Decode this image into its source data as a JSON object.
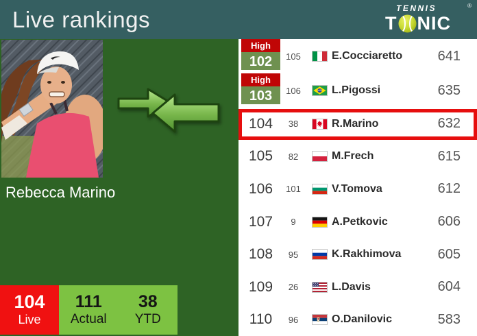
{
  "header": {
    "title": "Live rankings",
    "logo": {
      "top": "TENNIS",
      "bottom_left": "T",
      "bottom_right": "NIC",
      "registered": "®",
      "ball_color": "#c6d832"
    }
  },
  "player": {
    "name": "Rebecca Marino"
  },
  "stats": {
    "live": {
      "value": "104",
      "label": "Live"
    },
    "actual": {
      "value": "111",
      "label": "Actual"
    },
    "ytd": {
      "value": "38",
      "label": "YTD"
    }
  },
  "rankings": {
    "high_label": "High",
    "rows": [
      {
        "high": true,
        "highlighted": false,
        "rank": "102",
        "secondary": "105",
        "country": "italy",
        "player": "E.Cocciaretto",
        "points": "641"
      },
      {
        "high": true,
        "highlighted": false,
        "rank": "103",
        "secondary": "106",
        "country": "brazil",
        "player": "L.Pigossi",
        "points": "635"
      },
      {
        "high": false,
        "highlighted": true,
        "rank": "104",
        "secondary": "38",
        "country": "canada",
        "player": "R.Marino",
        "points": "632"
      },
      {
        "high": false,
        "highlighted": false,
        "rank": "105",
        "secondary": "82",
        "country": "poland",
        "player": "M.Frech",
        "points": "615"
      },
      {
        "high": false,
        "highlighted": false,
        "rank": "106",
        "secondary": "101",
        "country": "bulgaria",
        "player": "V.Tomova",
        "points": "612"
      },
      {
        "high": false,
        "highlighted": false,
        "rank": "107",
        "secondary": "9",
        "country": "germany",
        "player": "A.Petkovic",
        "points": "606"
      },
      {
        "high": false,
        "highlighted": false,
        "rank": "108",
        "secondary": "95",
        "country": "russia",
        "player": "K.Rakhimova",
        "points": "605"
      },
      {
        "high": false,
        "highlighted": false,
        "rank": "109",
        "secondary": "26",
        "country": "usa",
        "player": "L.Davis",
        "points": "604"
      },
      {
        "high": false,
        "highlighted": false,
        "rank": "110",
        "secondary": "96",
        "country": "serbia",
        "player": "O.Danilovic",
        "points": "583"
      }
    ]
  },
  "colors": {
    "header_bg": "#355f61",
    "panel_bg": "#2e6325",
    "high_block_green": "#6f9150",
    "high_badge_red": "#c00606",
    "highlight_border_red": "#e60e0e",
    "live_box_red": "#f01111",
    "stat_box_green": "#7dc242",
    "arrow_green": "#6fae43"
  }
}
